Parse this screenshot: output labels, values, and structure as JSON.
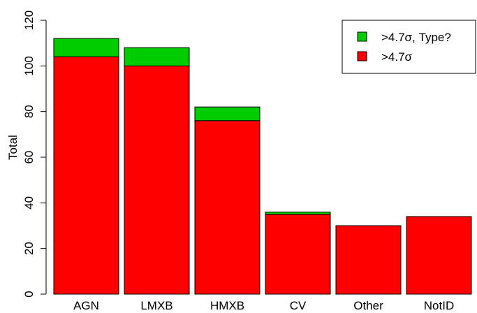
{
  "chart_data": {
    "type": "bar",
    "stacked": true,
    "categories": [
      "AGN",
      "LMXB",
      "HMXB",
      "CV",
      "Other",
      "NotID"
    ],
    "series": [
      {
        "name": ">4.7σ",
        "color": "#ff0000",
        "values": [
          104,
          100,
          76,
          35,
          30,
          34
        ]
      },
      {
        "name": ">4.7σ, Type?",
        "color": "#00cc00",
        "values": [
          8,
          8,
          6,
          1,
          0,
          0
        ]
      }
    ],
    "ylabel": "Total",
    "ylim": [
      0,
      120
    ],
    "yticks": [
      "0",
      "20",
      "40",
      "60",
      "80",
      "100",
      "120"
    ],
    "legend": {
      "position": "top-right",
      "entries": [
        {
          "label": ">4.7σ, Type?",
          "color": "#00cc00"
        },
        {
          "label": ">4.7σ",
          "color": "#ff0000"
        }
      ]
    },
    "grid": false
  }
}
